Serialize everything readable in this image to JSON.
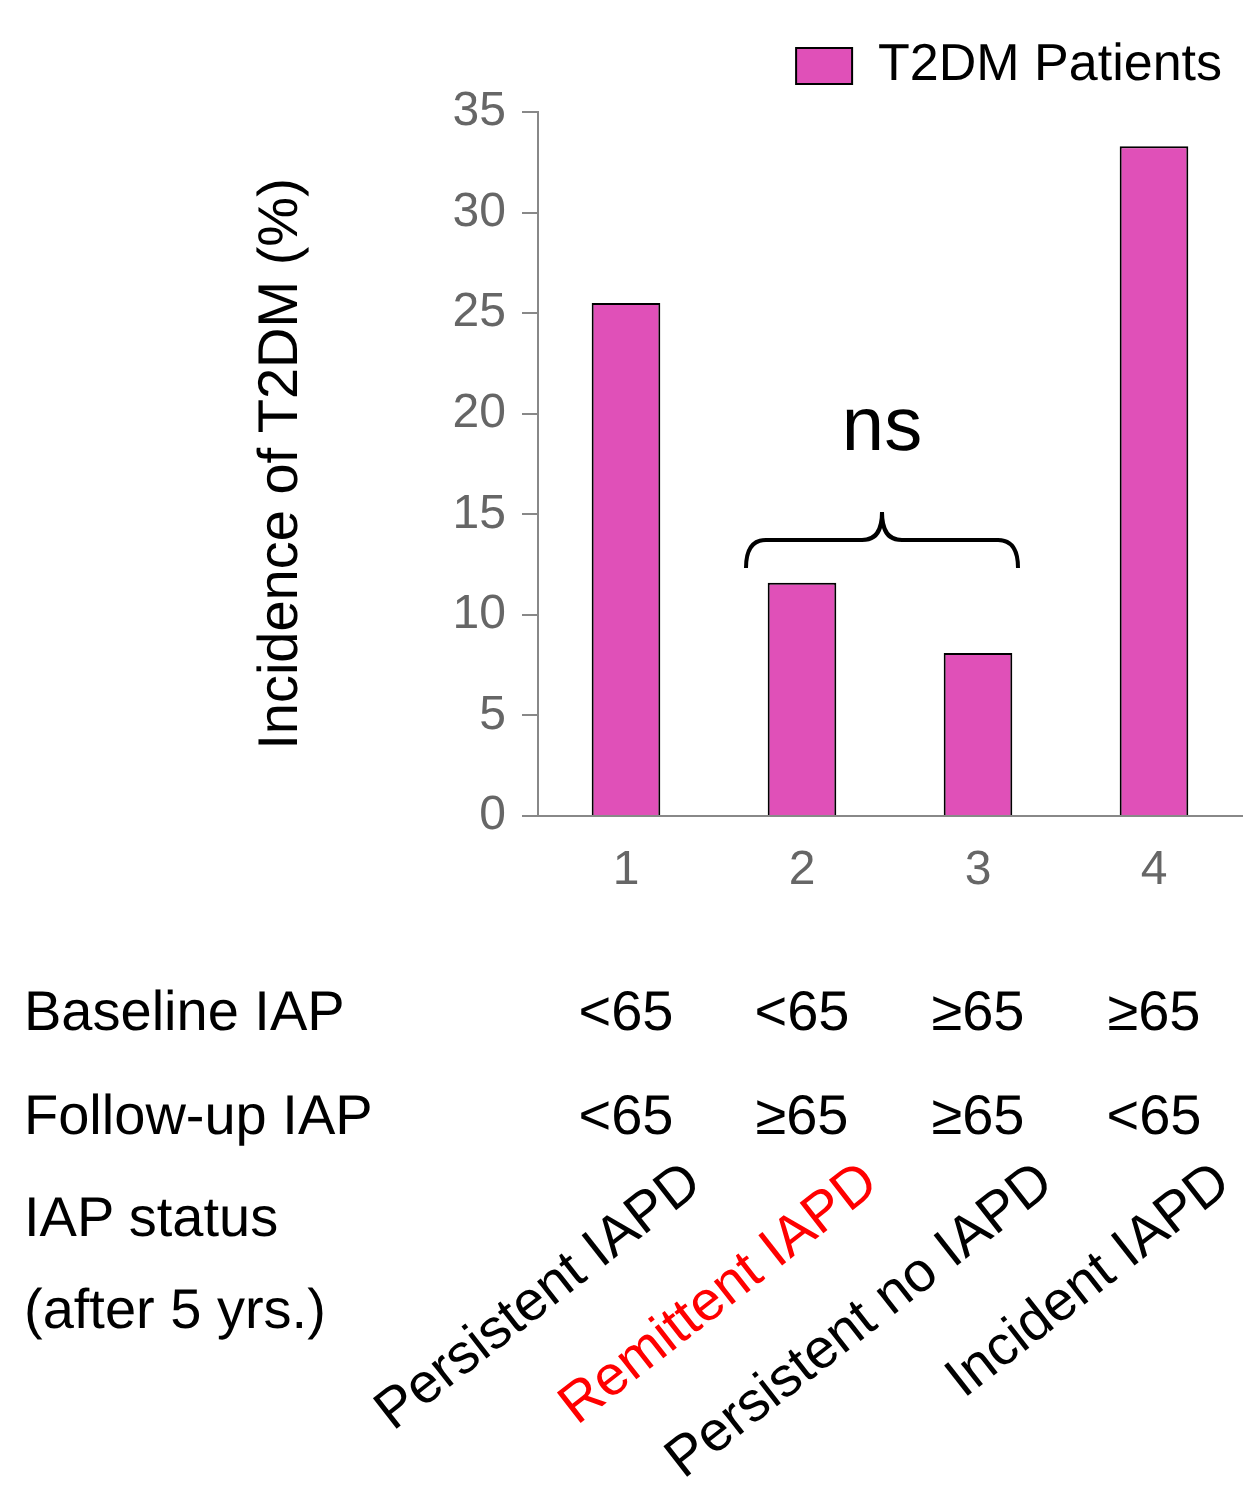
{
  "chart_data": {
    "type": "bar",
    "ylabel": "Incidence of T2DM (%)",
    "categories": [
      "1",
      "2",
      "3",
      "4"
    ],
    "series": [
      {
        "name": "T2DM Patients",
        "color": "#e050b8",
        "values": [
          25.5,
          11.6,
          8.1,
          33.3
        ]
      }
    ],
    "ylim": [
      0,
      35
    ],
    "yticks": [
      0,
      5,
      10,
      15,
      20,
      25,
      30,
      35
    ],
    "grid": false,
    "legend": "top right",
    "annotations": [
      "ns",
      "Baseline IAP",
      "<65",
      "<65",
      "≥65",
      "≥65",
      "Follow-up IAP",
      "<65",
      "≥65",
      "≥65",
      "<65",
      "IAP status\n(after 5 yrs.)",
      "Persistent IAPD",
      "Remittent IAPD",
      "Persistent no IAPD",
      "Incident IAPD"
    ]
  }
}
